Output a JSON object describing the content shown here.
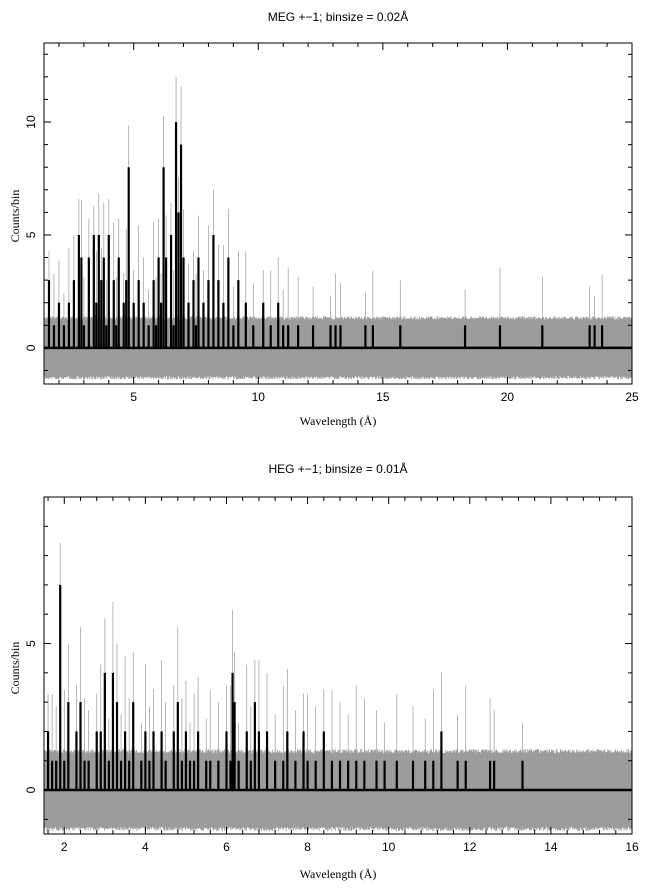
{
  "chart_data": [
    {
      "type": "histogram",
      "title": "MEG +−1; binsize = 0.02Å",
      "xlabel": "Wavelength (Å)",
      "ylabel": "Counts/bin",
      "xlim": [
        1.4,
        25.0
      ],
      "ylim": [
        -1.6,
        13.5
      ],
      "xticks": [
        5,
        10,
        15,
        20,
        25
      ],
      "yticks": [
        0,
        5,
        10
      ],
      "series": [
        {
          "style": "black step histogram (data)",
          "color": "#000000",
          "peaks": [
            [
              1.6,
              3
            ],
            [
              1.8,
              1
            ],
            [
              2.0,
              2
            ],
            [
              2.2,
              1
            ],
            [
              2.4,
              2
            ],
            [
              2.6,
              3
            ],
            [
              2.8,
              5
            ],
            [
              2.9,
              4
            ],
            [
              3.0,
              1
            ],
            [
              3.2,
              4
            ],
            [
              3.4,
              5
            ],
            [
              3.5,
              2
            ],
            [
              3.6,
              5
            ],
            [
              3.7,
              3
            ],
            [
              3.8,
              4
            ],
            [
              3.9,
              1
            ],
            [
              4.0,
              5
            ],
            [
              4.2,
              3
            ],
            [
              4.3,
              1
            ],
            [
              4.4,
              4
            ],
            [
              4.6,
              2
            ],
            [
              4.7,
              3
            ],
            [
              4.8,
              8
            ],
            [
              5.0,
              2
            ],
            [
              5.2,
              3
            ],
            [
              5.4,
              2
            ],
            [
              5.6,
              1
            ],
            [
              5.8,
              3
            ],
            [
              5.9,
              1
            ],
            [
              6.0,
              4
            ],
            [
              6.1,
              2
            ],
            [
              6.2,
              8
            ],
            [
              6.3,
              4
            ],
            [
              6.5,
              5
            ],
            [
              6.6,
              1
            ],
            [
              6.7,
              10
            ],
            [
              6.8,
              6
            ],
            [
              6.9,
              9
            ],
            [
              7.0,
              4
            ],
            [
              7.2,
              2
            ],
            [
              7.4,
              3
            ],
            [
              7.5,
              1
            ],
            [
              7.6,
              4
            ],
            [
              7.8,
              2
            ],
            [
              8.0,
              3
            ],
            [
              8.2,
              5
            ],
            [
              8.4,
              3
            ],
            [
              8.6,
              2
            ],
            [
              8.8,
              4
            ],
            [
              9.0,
              1
            ],
            [
              9.2,
              3
            ],
            [
              9.5,
              2
            ],
            [
              9.8,
              1
            ],
            [
              10.2,
              2
            ],
            [
              10.5,
              1
            ],
            [
              10.8,
              2
            ],
            [
              11.0,
              1
            ],
            [
              11.2,
              1
            ],
            [
              11.6,
              1
            ],
            [
              12.2,
              1
            ],
            [
              12.9,
              1
            ],
            [
              13.1,
              1
            ],
            [
              13.3,
              1
            ],
            [
              14.3,
              1
            ],
            [
              14.6,
              1
            ],
            [
              15.7,
              1
            ],
            [
              18.3,
              1
            ],
            [
              19.7,
              1
            ],
            [
              21.4,
              1
            ],
            [
              23.3,
              1
            ],
            [
              23.5,
              1
            ],
            [
              23.8,
              1
            ]
          ]
        },
        {
          "style": "grey thin lines (model / uncertainty band)",
          "color": "#999999",
          "band": [
            -1.4,
            1.4
          ]
        }
      ]
    },
    {
      "type": "histogram",
      "title": "HEG +−1; binsize = 0.01Å",
      "xlabel": "Wavelength (Å)",
      "ylabel": "Counts/bin",
      "xlim": [
        1.5,
        16.0
      ],
      "ylim": [
        -1.5,
        10.0
      ],
      "xticks": [
        2,
        4,
        6,
        8,
        10,
        12,
        14,
        16
      ],
      "yticks": [
        0,
        5
      ],
      "series": [
        {
          "style": "black step histogram (data)",
          "color": "#000000",
          "peaks": [
            [
              1.6,
              2
            ],
            [
              1.7,
              1
            ],
            [
              1.8,
              1
            ],
            [
              1.9,
              7
            ],
            [
              2.0,
              1
            ],
            [
              2.1,
              3
            ],
            [
              2.3,
              2
            ],
            [
              2.4,
              3
            ],
            [
              2.5,
              1
            ],
            [
              2.6,
              1
            ],
            [
              2.8,
              2
            ],
            [
              2.9,
              2
            ],
            [
              3.0,
              4
            ],
            [
              3.1,
              1
            ],
            [
              3.2,
              4
            ],
            [
              3.3,
              3
            ],
            [
              3.4,
              1
            ],
            [
              3.5,
              2
            ],
            [
              3.6,
              1
            ],
            [
              3.7,
              3
            ],
            [
              3.9,
              1
            ],
            [
              4.0,
              2
            ],
            [
              4.1,
              1
            ],
            [
              4.2,
              2
            ],
            [
              4.4,
              2
            ],
            [
              4.5,
              1
            ],
            [
              4.7,
              2
            ],
            [
              4.8,
              3
            ],
            [
              4.9,
              1
            ],
            [
              5.0,
              2
            ],
            [
              5.1,
              1
            ],
            [
              5.2,
              1
            ],
            [
              5.3,
              2
            ],
            [
              5.5,
              1
            ],
            [
              5.6,
              1
            ],
            [
              5.8,
              1
            ],
            [
              6.0,
              2
            ],
            [
              6.1,
              1
            ],
            [
              6.15,
              4
            ],
            [
              6.2,
              3
            ],
            [
              6.3,
              1
            ],
            [
              6.5,
              2
            ],
            [
              6.6,
              1
            ],
            [
              6.7,
              3
            ],
            [
              6.8,
              2
            ],
            [
              7.0,
              2
            ],
            [
              7.2,
              1
            ],
            [
              7.4,
              1
            ],
            [
              7.5,
              2
            ],
            [
              7.7,
              1
            ],
            [
              7.9,
              2
            ],
            [
              8.0,
              1
            ],
            [
              8.2,
              1
            ],
            [
              8.4,
              2
            ],
            [
              8.6,
              1
            ],
            [
              8.8,
              1
            ],
            [
              9.0,
              1
            ],
            [
              9.2,
              1
            ],
            [
              9.4,
              1
            ],
            [
              9.7,
              1
            ],
            [
              9.9,
              1
            ],
            [
              10.2,
              1
            ],
            [
              10.6,
              1
            ],
            [
              10.9,
              1
            ],
            [
              11.1,
              1
            ],
            [
              11.3,
              2
            ],
            [
              11.7,
              1
            ],
            [
              11.9,
              1
            ],
            [
              12.5,
              1
            ],
            [
              12.6,
              1
            ],
            [
              13.3,
              1
            ]
          ]
        },
        {
          "style": "grey thin lines (model / uncertainty band)",
          "color": "#999999",
          "band": [
            -1.4,
            1.4
          ]
        }
      ]
    }
  ]
}
